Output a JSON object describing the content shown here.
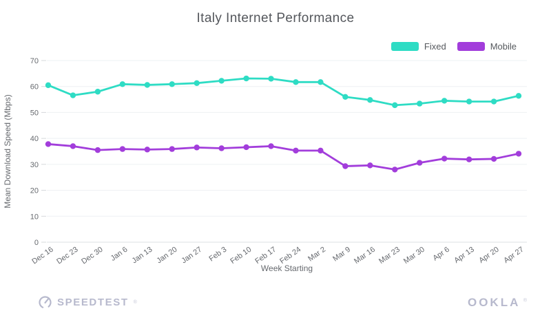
{
  "title": "Italy Internet Performance",
  "legend": {
    "items": [
      {
        "label": "Fixed",
        "color": "#2edcc4"
      },
      {
        "label": "Mobile",
        "color": "#a23ddb"
      }
    ]
  },
  "chart_data": {
    "type": "line",
    "title": "Italy Internet Performance",
    "xlabel": "Week Starting",
    "ylabel": "Mean Download Speed (Mbps)",
    "ylim": [
      0,
      70
    ],
    "yticks": [
      0,
      10,
      20,
      30,
      40,
      50,
      60,
      70
    ],
    "grid": "horizontal",
    "legend_position": "top-right",
    "x": [
      "Dec 16",
      "Dec 23",
      "Dec 30",
      "Jan 6",
      "Jan 13",
      "Jan 20",
      "Jan 27",
      "Feb 3",
      "Feb 10",
      "Feb 17",
      "Feb 24",
      "Mar 2",
      "Mar 9",
      "Mar 16",
      "Mar 23",
      "Mar 30",
      "Apr 6",
      "Apr 13",
      "Apr 20",
      "Apr 27"
    ],
    "series": [
      {
        "name": "Fixed",
        "color": "#2edcc4",
        "values": [
          60.5,
          56.6,
          58.0,
          60.9,
          60.6,
          60.9,
          61.3,
          62.2,
          63.1,
          63.0,
          61.7,
          61.7,
          56.0,
          54.8,
          52.8,
          53.4,
          54.5,
          54.2,
          54.2,
          56.4
        ]
      },
      {
        "name": "Mobile",
        "color": "#a23ddb",
        "values": [
          37.8,
          37.0,
          35.5,
          35.9,
          35.7,
          35.9,
          36.5,
          36.2,
          36.6,
          37.0,
          35.3,
          35.3,
          29.3,
          29.6,
          28.0,
          30.6,
          32.2,
          31.9,
          32.1,
          34.1
        ]
      }
    ]
  },
  "footer": {
    "speedtest_label": "SPEEDTEST",
    "ookla_label": "OOKLA",
    "reg_mark": "®",
    "logo_color": "#b7b9cd"
  }
}
